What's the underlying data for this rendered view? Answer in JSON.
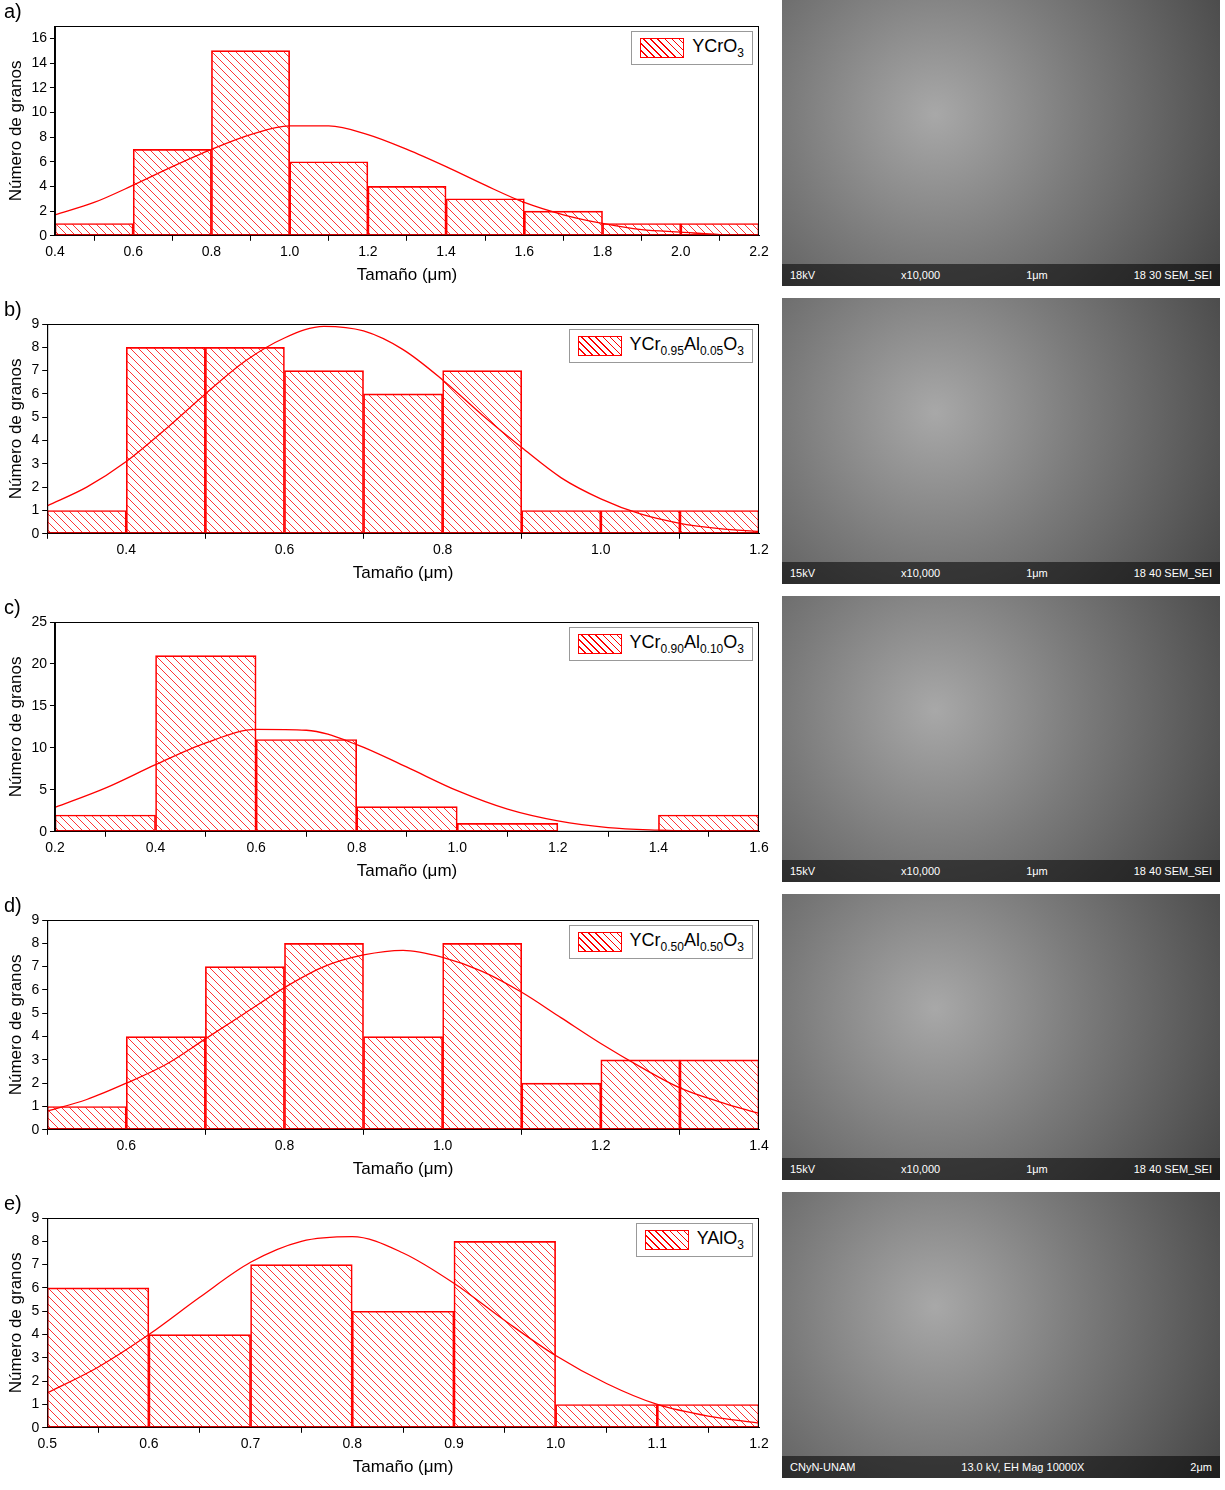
{
  "chart_data": [
    {
      "type": "histogram",
      "panel_label": "a)",
      "x_label": "Tamaño (μm)",
      "y_label": "Número de granos",
      "bins": [
        0.4,
        0.6,
        0.8,
        1.0,
        1.2,
        1.4,
        1.6,
        1.8,
        2.0,
        2.2
      ],
      "series": [
        {
          "name": "YCrO3",
          "color": "#ff0000",
          "values": [
            1,
            7,
            15,
            6,
            4,
            3,
            2,
            1,
            1
          ]
        }
      ],
      "fit_curve": {
        "x": [
          0.4,
          0.5,
          0.6,
          0.7,
          0.8,
          0.9,
          1.0,
          1.1,
          1.2,
          1.3,
          1.4,
          1.5,
          1.6,
          1.7,
          1.8,
          1.9,
          2.0,
          2.1,
          2.2
        ],
        "y": [
          1.7,
          2.7,
          4.1,
          5.6,
          7.0,
          8.2,
          8.9,
          8.9,
          8.2,
          7.0,
          5.6,
          4.1,
          2.7,
          1.7,
          1.0,
          0.5,
          0.3,
          0.1,
          0.05
        ]
      },
      "xlim": [
        0.4,
        2.2
      ],
      "xticks": [
        0.4,
        0.6,
        0.8,
        {
          "value": 1,
          "label": "1.0"
        },
        1.2,
        1.4,
        1.6,
        1.8,
        {
          "value": 2,
          "label": "2.0"
        },
        2.2
      ],
      "ylim": [
        0,
        17
      ],
      "yticks": [
        0,
        2,
        4,
        6,
        8,
        10,
        12,
        14,
        16
      ],
      "grid": false,
      "legend": "upper right"
    },
    {
      "type": "histogram",
      "panel_label": "b)",
      "x_label": "Tamaño (μm)",
      "y_label": "Número de granos",
      "bins": [
        0.3,
        0.4,
        0.5,
        0.6,
        0.7,
        0.8,
        0.9,
        1.0,
        1.1,
        1.2
      ],
      "series": [
        {
          "name": "YCr0.95Al0.05O3",
          "color": "#ff0000",
          "values": [
            1,
            8,
            8,
            7,
            6,
            7,
            1,
            1,
            1
          ]
        }
      ],
      "fit_curve": {
        "x": [
          0.3,
          0.35,
          0.4,
          0.45,
          0.5,
          0.55,
          0.6,
          0.65,
          0.7,
          0.75,
          0.8,
          0.85,
          0.9,
          0.95,
          1.0,
          1.05,
          1.1,
          1.15,
          1.2
        ],
        "y": [
          1.2,
          2.0,
          3.1,
          4.5,
          6.0,
          7.4,
          8.4,
          8.9,
          8.7,
          7.9,
          6.6,
          5.1,
          3.7,
          2.4,
          1.5,
          0.85,
          0.45,
          0.22,
          0.1
        ]
      },
      "xlim": [
        0.3,
        1.2
      ],
      "xticks": [
        0.4,
        0.6,
        0.8,
        {
          "value": 1,
          "label": "1.0"
        },
        1.2
      ],
      "ylim": [
        0,
        9
      ],
      "yticks": [
        0,
        1,
        2,
        3,
        4,
        5,
        6,
        7,
        8,
        9
      ],
      "grid": false,
      "legend": "upper right"
    },
    {
      "type": "histogram",
      "panel_label": "c)",
      "x_label": "Tamaño (μm)",
      "y_label": "Número de granos",
      "bins": [
        0.2,
        0.4,
        0.6,
        0.8,
        1.0,
        1.2,
        1.4,
        1.6
      ],
      "series": [
        {
          "name": "YCr0.90Al0.10O3",
          "color": "#ff0000",
          "values": [
            2,
            21,
            11,
            3,
            1,
            0,
            2
          ]
        }
      ],
      "fit_curve": {
        "x": [
          0.2,
          0.3,
          0.4,
          0.5,
          0.6,
          0.7,
          0.8,
          0.9,
          1.0,
          1.1,
          1.2,
          1.3,
          1.4,
          1.5,
          1.6
        ],
        "y": [
          2.9,
          5.2,
          8.0,
          10.6,
          12.2,
          12.1,
          10.4,
          7.7,
          4.9,
          2.7,
          1.3,
          0.5,
          0.2,
          0.06,
          0.01
        ]
      },
      "xlim": [
        0.2,
        1.6
      ],
      "xticks": [
        0.2,
        0.4,
        0.6,
        0.8,
        {
          "value": 1,
          "label": "1.0"
        },
        1.2,
        1.4,
        1.6
      ],
      "ylim": [
        0,
        25
      ],
      "yticks": [
        0,
        5,
        10,
        15,
        20,
        25
      ],
      "grid": false,
      "legend": "upper right"
    },
    {
      "type": "histogram",
      "panel_label": "d)",
      "x_label": "Tamaño (μm)",
      "y_label": "Número de granos",
      "bins": [
        0.5,
        0.6,
        0.7,
        0.8,
        0.9,
        1.0,
        1.1,
        1.2,
        1.3,
        1.4
      ],
      "series": [
        {
          "name": "YCr0.50Al0.50O3",
          "color": "#ff0000",
          "values": [
            1,
            4,
            7,
            8,
            4,
            8,
            2,
            3,
            3
          ]
        }
      ],
      "fit_curve": {
        "x": [
          0.5,
          0.55,
          0.6,
          0.65,
          0.7,
          0.75,
          0.8,
          0.85,
          0.9,
          0.95,
          1.0,
          1.05,
          1.1,
          1.15,
          1.2,
          1.25,
          1.3,
          1.35,
          1.4
        ],
        "y": [
          0.8,
          1.3,
          2.0,
          2.8,
          3.9,
          5.0,
          6.1,
          7.0,
          7.5,
          7.7,
          7.4,
          6.8,
          5.9,
          4.8,
          3.7,
          2.7,
          1.8,
          1.2,
          0.7
        ]
      },
      "xlim": [
        0.5,
        1.4
      ],
      "xticks": [
        0.6,
        0.8,
        {
          "value": 1,
          "label": "1.0"
        },
        1.2,
        1.4
      ],
      "ylim": [
        0,
        9
      ],
      "yticks": [
        0,
        1,
        2,
        3,
        4,
        5,
        6,
        7,
        8,
        9
      ],
      "grid": false,
      "legend": "upper right"
    },
    {
      "type": "histogram",
      "panel_label": "e)",
      "x_label": "Tamaño (μm)",
      "y_label": "Número de granos",
      "bins": [
        0.5,
        0.6,
        0.7,
        0.8,
        0.9,
        1.0,
        1.1,
        1.2
      ],
      "series": [
        {
          "name": "YAlO3",
          "color": "#ff0000",
          "values": [
            6,
            4,
            7,
            5,
            8,
            1,
            1
          ]
        }
      ],
      "fit_curve": {
        "x": [
          0.5,
          0.55,
          0.6,
          0.65,
          0.7,
          0.75,
          0.8,
          0.85,
          0.9,
          0.95,
          1.0,
          1.05,
          1.1,
          1.15,
          1.2
        ],
        "y": [
          1.5,
          2.6,
          4.0,
          5.6,
          7.1,
          8.0,
          8.2,
          7.5,
          6.2,
          4.6,
          3.1,
          1.9,
          1.0,
          0.5,
          0.2
        ]
      },
      "xlim": [
        0.5,
        1.2
      ],
      "xticks": [
        0.5,
        0.6,
        0.7,
        0.8,
        0.9,
        {
          "value": 1,
          "label": "1.0"
        },
        1.1,
        1.2
      ],
      "ylim": [
        0,
        9
      ],
      "yticks": [
        0,
        1,
        2,
        3,
        4,
        5,
        6,
        7,
        8,
        9
      ],
      "grid": false,
      "legend": "upper right"
    }
  ],
  "micrographs": [
    {
      "labels": [
        "18kV",
        "x10,000",
        "1μm",
        "18 30 SEM_SEI"
      ]
    },
    {
      "labels": [
        "15kV",
        "x10,000",
        "1μm",
        "18 40 SEM_SEI"
      ]
    },
    {
      "labels": [
        "15kV",
        "x10,000",
        "1μm",
        "18 40 SEM_SEI"
      ]
    },
    {
      "labels": [
        "15kV",
        "x10,000",
        "1μm",
        "18 40 SEM_SEI"
      ]
    },
    {
      "labels": [
        "CNyN-UNAM",
        "13.0 kV, EH Mag 10000X",
        "2μm"
      ]
    }
  ]
}
